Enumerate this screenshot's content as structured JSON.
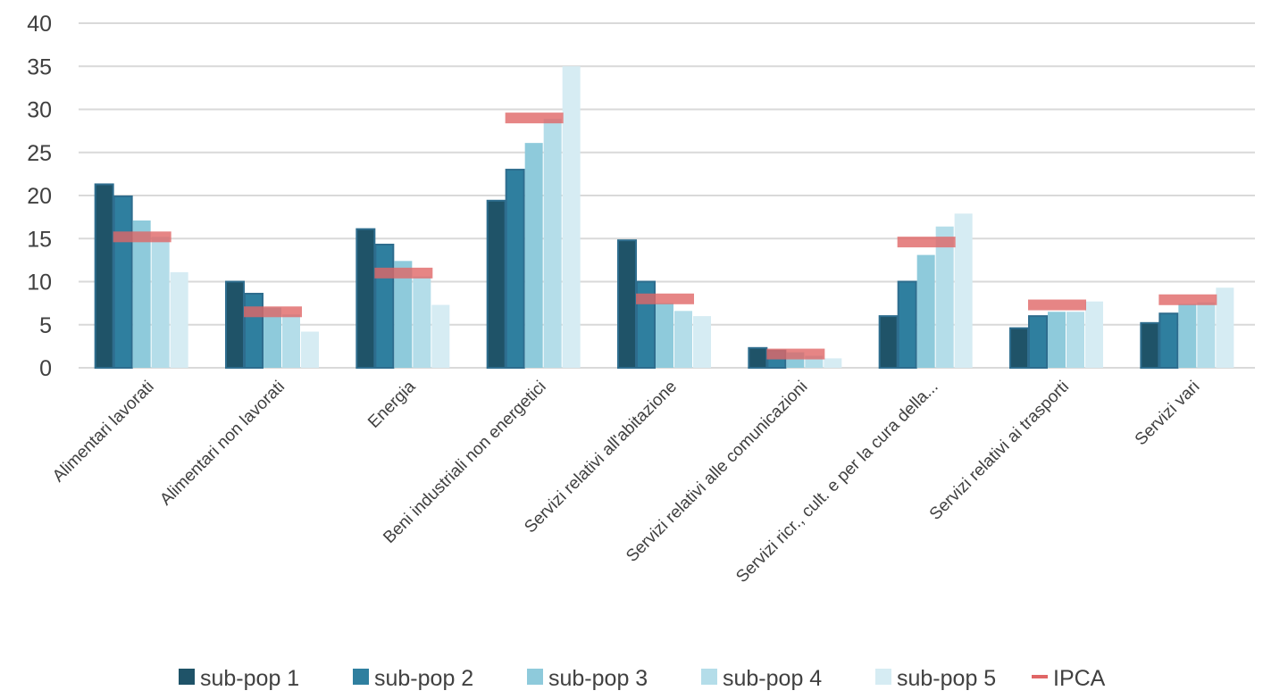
{
  "chart_data": {
    "type": "bar",
    "ylim": [
      0,
      40
    ],
    "yticks": [
      "0",
      "5",
      "10",
      "15",
      "20",
      "25",
      "30",
      "35",
      "40"
    ],
    "grid": true,
    "legend_position": "bottom",
    "categories": [
      "Alimentari lavorati",
      "Alimentari non lavorati",
      "Energia",
      "Beni industriali non energetici",
      "Servizi relativi all'abitazione",
      "Servizi relativi alle comunicazioni",
      "Servizi ricr., cult. e per la cura della...",
      "Servizi relativi ai trasporti",
      "Servizi vari"
    ],
    "series": [
      {
        "name": "sub-pop 1",
        "color": "#1f5368",
        "values": [
          21.3,
          10.0,
          16.1,
          19.4,
          14.8,
          2.3,
          6.0,
          4.6,
          5.2
        ]
      },
      {
        "name": "sub-pop 2",
        "color": "#2f7f9f",
        "values": [
          19.9,
          8.6,
          14.3,
          23.0,
          10.0,
          2.0,
          10.0,
          6.0,
          6.3
        ]
      },
      {
        "name": "sub-pop 3",
        "color": "#8ecadb",
        "values": [
          17.1,
          7.0,
          12.4,
          26.1,
          7.5,
          1.8,
          13.1,
          6.5,
          7.4
        ]
      },
      {
        "name": "sub-pop 4",
        "color": "#b4dde9",
        "values": [
          15.2,
          6.2,
          10.6,
          28.9,
          6.6,
          1.4,
          16.4,
          6.5,
          7.6
        ]
      },
      {
        "name": "sub-pop 5",
        "color": "#d6ecf3",
        "values": [
          11.1,
          4.2,
          7.3,
          35.0,
          6.0,
          1.1,
          17.9,
          7.7,
          9.3
        ]
      }
    ],
    "ipca": {
      "name": "IPCA",
      "color": "#e06666",
      "values": [
        15.2,
        6.5,
        11.0,
        29.0,
        8.0,
        1.6,
        14.6,
        7.3,
        7.9
      ]
    }
  }
}
